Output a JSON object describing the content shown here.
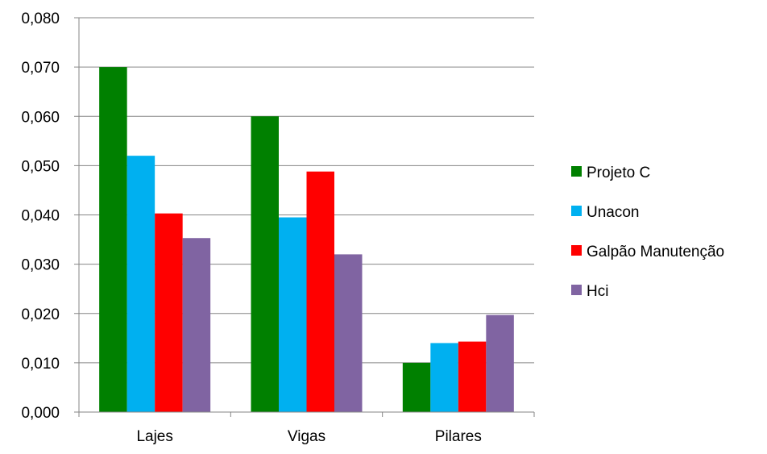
{
  "chart_data": {
    "type": "bar",
    "categories": [
      "Lajes",
      "Vigas",
      "Pilares"
    ],
    "series": [
      {
        "name": "Projeto C",
        "values": [
          0.07,
          0.06,
          0.01
        ],
        "color": "#008000"
      },
      {
        "name": "Unacon",
        "values": [
          0.052,
          0.0395,
          0.014
        ],
        "color": "#00B0F0"
      },
      {
        "name": "Galpão Manutenção",
        "values": [
          0.0403,
          0.0488,
          0.0143
        ],
        "color": "#FF0000"
      },
      {
        "name": "Hci",
        "values": [
          0.0353,
          0.032,
          0.0197
        ],
        "color": "#8064A2"
      }
    ],
    "ylim": [
      0,
      0.08
    ],
    "yticks": [
      "0,000",
      "0,010",
      "0,020",
      "0,030",
      "0,040",
      "0,050",
      "0,060",
      "0,070",
      "0,080"
    ],
    "grid": true,
    "legend_position": "right",
    "title": "",
    "xlabel": "",
    "ylabel": ""
  }
}
